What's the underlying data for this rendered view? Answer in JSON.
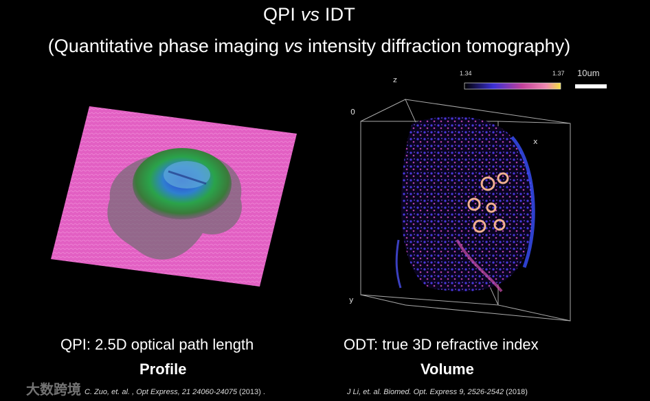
{
  "title": {
    "left": "QPI ",
    "vs": "vs",
    "right": " IDT"
  },
  "subtitle": {
    "left": "(Quantitative phase imaging ",
    "vs": "vs",
    "right": " intensity diffraction tomography)"
  },
  "left_panel": {
    "caption": "QPI: 2.5D optical path length",
    "caption_bold": "Profile",
    "reference": "C. Zuo, et. al. , Opt Express, 21 24060-24075",
    "reference_year": "(2013) ."
  },
  "right_panel": {
    "axis_z": "z",
    "axis_zero": "0",
    "axis_x": "x",
    "axis_y": "y",
    "colorbar_min": "1.34",
    "colorbar_max": "1.37",
    "scale_bar": "10um",
    "caption": "ODT: true 3D refractive index",
    "caption_bold": "Volume",
    "reference": "J Li, et. al.  Biomed. Opt. Express 9, 2526-2542",
    "reference_year": "(2018)"
  },
  "watermark": "大数跨境",
  "colors": {
    "pink": "#e35fc4",
    "blue": "#3a2fd6",
    "gold": "#f2c94c"
  }
}
